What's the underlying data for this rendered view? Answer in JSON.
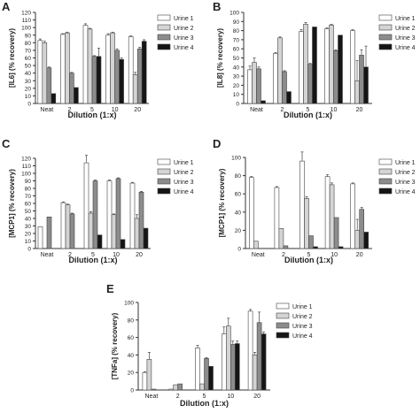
{
  "series_style": {
    "Urine 1": "#ffffff",
    "Urine 2": "#d4d4d4",
    "Urine 3": "#8c8c8c",
    "Urine 4": "#151515"
  },
  "chart_data": [
    {
      "panel": "A",
      "type": "bar",
      "ylabel": "[IL6] (% recovery)",
      "xlabel": "Dilution (1:x)",
      "ylim": [
        0,
        120
      ],
      "yticks": [
        0,
        10,
        20,
        30,
        40,
        50,
        60,
        70,
        80,
        90,
        100,
        110,
        120
      ],
      "categories": [
        "Neat",
        "2",
        "5",
        "10",
        "20"
      ],
      "legend_position": "right",
      "series": [
        {
          "name": "Urine 1",
          "values": [
            83,
            91,
            103,
            90,
            88
          ],
          "errors": [
            2,
            1,
            2,
            2,
            1
          ]
        },
        {
          "name": "Urine 2",
          "values": [
            80,
            93,
            98,
            93,
            38
          ],
          "errors": [
            2,
            1,
            1,
            1,
            3
          ]
        },
        {
          "name": "Urine 3",
          "values": [
            47,
            40,
            62,
            70,
            72
          ],
          "errors": [
            1,
            1,
            1,
            2,
            2
          ]
        },
        {
          "name": "Urine 4",
          "values": [
            13,
            21,
            62,
            58,
            82
          ],
          "errors": [
            0,
            0,
            11,
            2,
            2
          ]
        }
      ]
    },
    {
      "panel": "B",
      "type": "bar",
      "ylabel": "[IL8] (% recovery)",
      "xlabel": "Dilution (1:x)",
      "ylim": [
        0,
        100
      ],
      "yticks": [
        0,
        10,
        20,
        30,
        40,
        50,
        60,
        70,
        80,
        90,
        100
      ],
      "categories": [
        "Neat",
        "2",
        "5",
        "10",
        "20"
      ],
      "legend_position": "right",
      "series": [
        {
          "name": "Urine 1",
          "values": [
            37,
            55,
            79,
            82,
            80
          ],
          "errors": [
            4,
            1,
            2,
            1,
            1
          ]
        },
        {
          "name": "Urine 2",
          "values": [
            45,
            72,
            87,
            86,
            25
          ],
          "errors": [
            5,
            1,
            2,
            1,
            22
          ]
        },
        {
          "name": "Urine 3",
          "values": [
            38,
            35,
            43,
            58,
            53
          ],
          "errors": [
            2,
            1,
            1,
            1,
            6
          ]
        },
        {
          "name": "Urine 4",
          "values": [
            3,
            13,
            84,
            75,
            40
          ],
          "errors": [
            0,
            0,
            0,
            0,
            23
          ]
        }
      ]
    },
    {
      "panel": "C",
      "type": "bar",
      "ylabel": "[MCP1] (% recovery)",
      "xlabel": "Dilution (1:x)",
      "ylim": [
        0,
        120
      ],
      "yticks": [
        0,
        10,
        20,
        30,
        40,
        50,
        60,
        70,
        80,
        90,
        100,
        110,
        120
      ],
      "categories": [
        "Neat",
        "2",
        "5",
        "10",
        "20"
      ],
      "legend_position": "right",
      "series": [
        {
          "name": "Urine 1",
          "values": [
            29,
            61,
            114,
            90,
            87
          ],
          "errors": [
            0,
            1,
            10,
            1,
            1
          ]
        },
        {
          "name": "Urine 2",
          "values": [
            0,
            58,
            47,
            45,
            40
          ],
          "errors": [
            0,
            1,
            2,
            1,
            5
          ]
        },
        {
          "name": "Urine 3",
          "values": [
            42,
            46,
            90,
            93,
            75
          ],
          "errors": [
            0,
            1,
            1,
            1,
            1
          ]
        },
        {
          "name": "Urine 4",
          "values": [
            0,
            0,
            18,
            12,
            27
          ],
          "errors": [
            0,
            0,
            0,
            0,
            0
          ]
        }
      ]
    },
    {
      "panel": "D",
      "type": "bar",
      "ylabel": "[MCP1] (% recovery)",
      "xlabel": "Dilution (1:x)",
      "ylim": [
        0,
        100
      ],
      "yticks": [
        0,
        20,
        40,
        60,
        80,
        100
      ],
      "categories": [
        "Neat",
        "2",
        "5",
        "10",
        "20"
      ],
      "legend_position": "right",
      "series": [
        {
          "name": "Urine 1",
          "values": [
            78,
            67,
            96,
            79,
            71
          ],
          "errors": [
            1,
            1,
            10,
            2,
            1
          ]
        },
        {
          "name": "Urine 2",
          "values": [
            8,
            22,
            55,
            70,
            20
          ],
          "errors": [
            0,
            0,
            2,
            2,
            12
          ]
        },
        {
          "name": "Urine 3",
          "values": [
            0,
            3,
            14,
            34,
            43
          ],
          "errors": [
            0,
            0,
            0,
            0,
            2
          ]
        },
        {
          "name": "Urine 4",
          "values": [
            0,
            0,
            2,
            2,
            18
          ],
          "errors": [
            0,
            0,
            0,
            0,
            0
          ]
        }
      ]
    },
    {
      "panel": "E",
      "type": "bar",
      "ylabel": "[TNFa] (% recovery)",
      "xlabel": "Dilution (1:x)",
      "ylim": [
        0,
        100
      ],
      "yticks": [
        0,
        20,
        40,
        60,
        80,
        100
      ],
      "categories": [
        "Neat",
        "2",
        "5",
        "10",
        "20"
      ],
      "legend_position": "right",
      "series": [
        {
          "name": "Urine 1",
          "values": [
            20,
            1,
            48,
            64,
            90
          ],
          "errors": [
            1,
            0,
            3,
            8,
            2
          ]
        },
        {
          "name": "Urine 2",
          "values": [
            35,
            6,
            7,
            73,
            40
          ],
          "errors": [
            8,
            0,
            0,
            9,
            3
          ]
        },
        {
          "name": "Urine 3",
          "values": [
            1,
            7,
            36,
            52,
            77
          ],
          "errors": [
            0,
            0,
            1,
            4,
            12
          ]
        },
        {
          "name": "Urine 4",
          "values": [
            0,
            0,
            27,
            53,
            64
          ],
          "errors": [
            0,
            0,
            0,
            3,
            2
          ]
        }
      ]
    }
  ]
}
